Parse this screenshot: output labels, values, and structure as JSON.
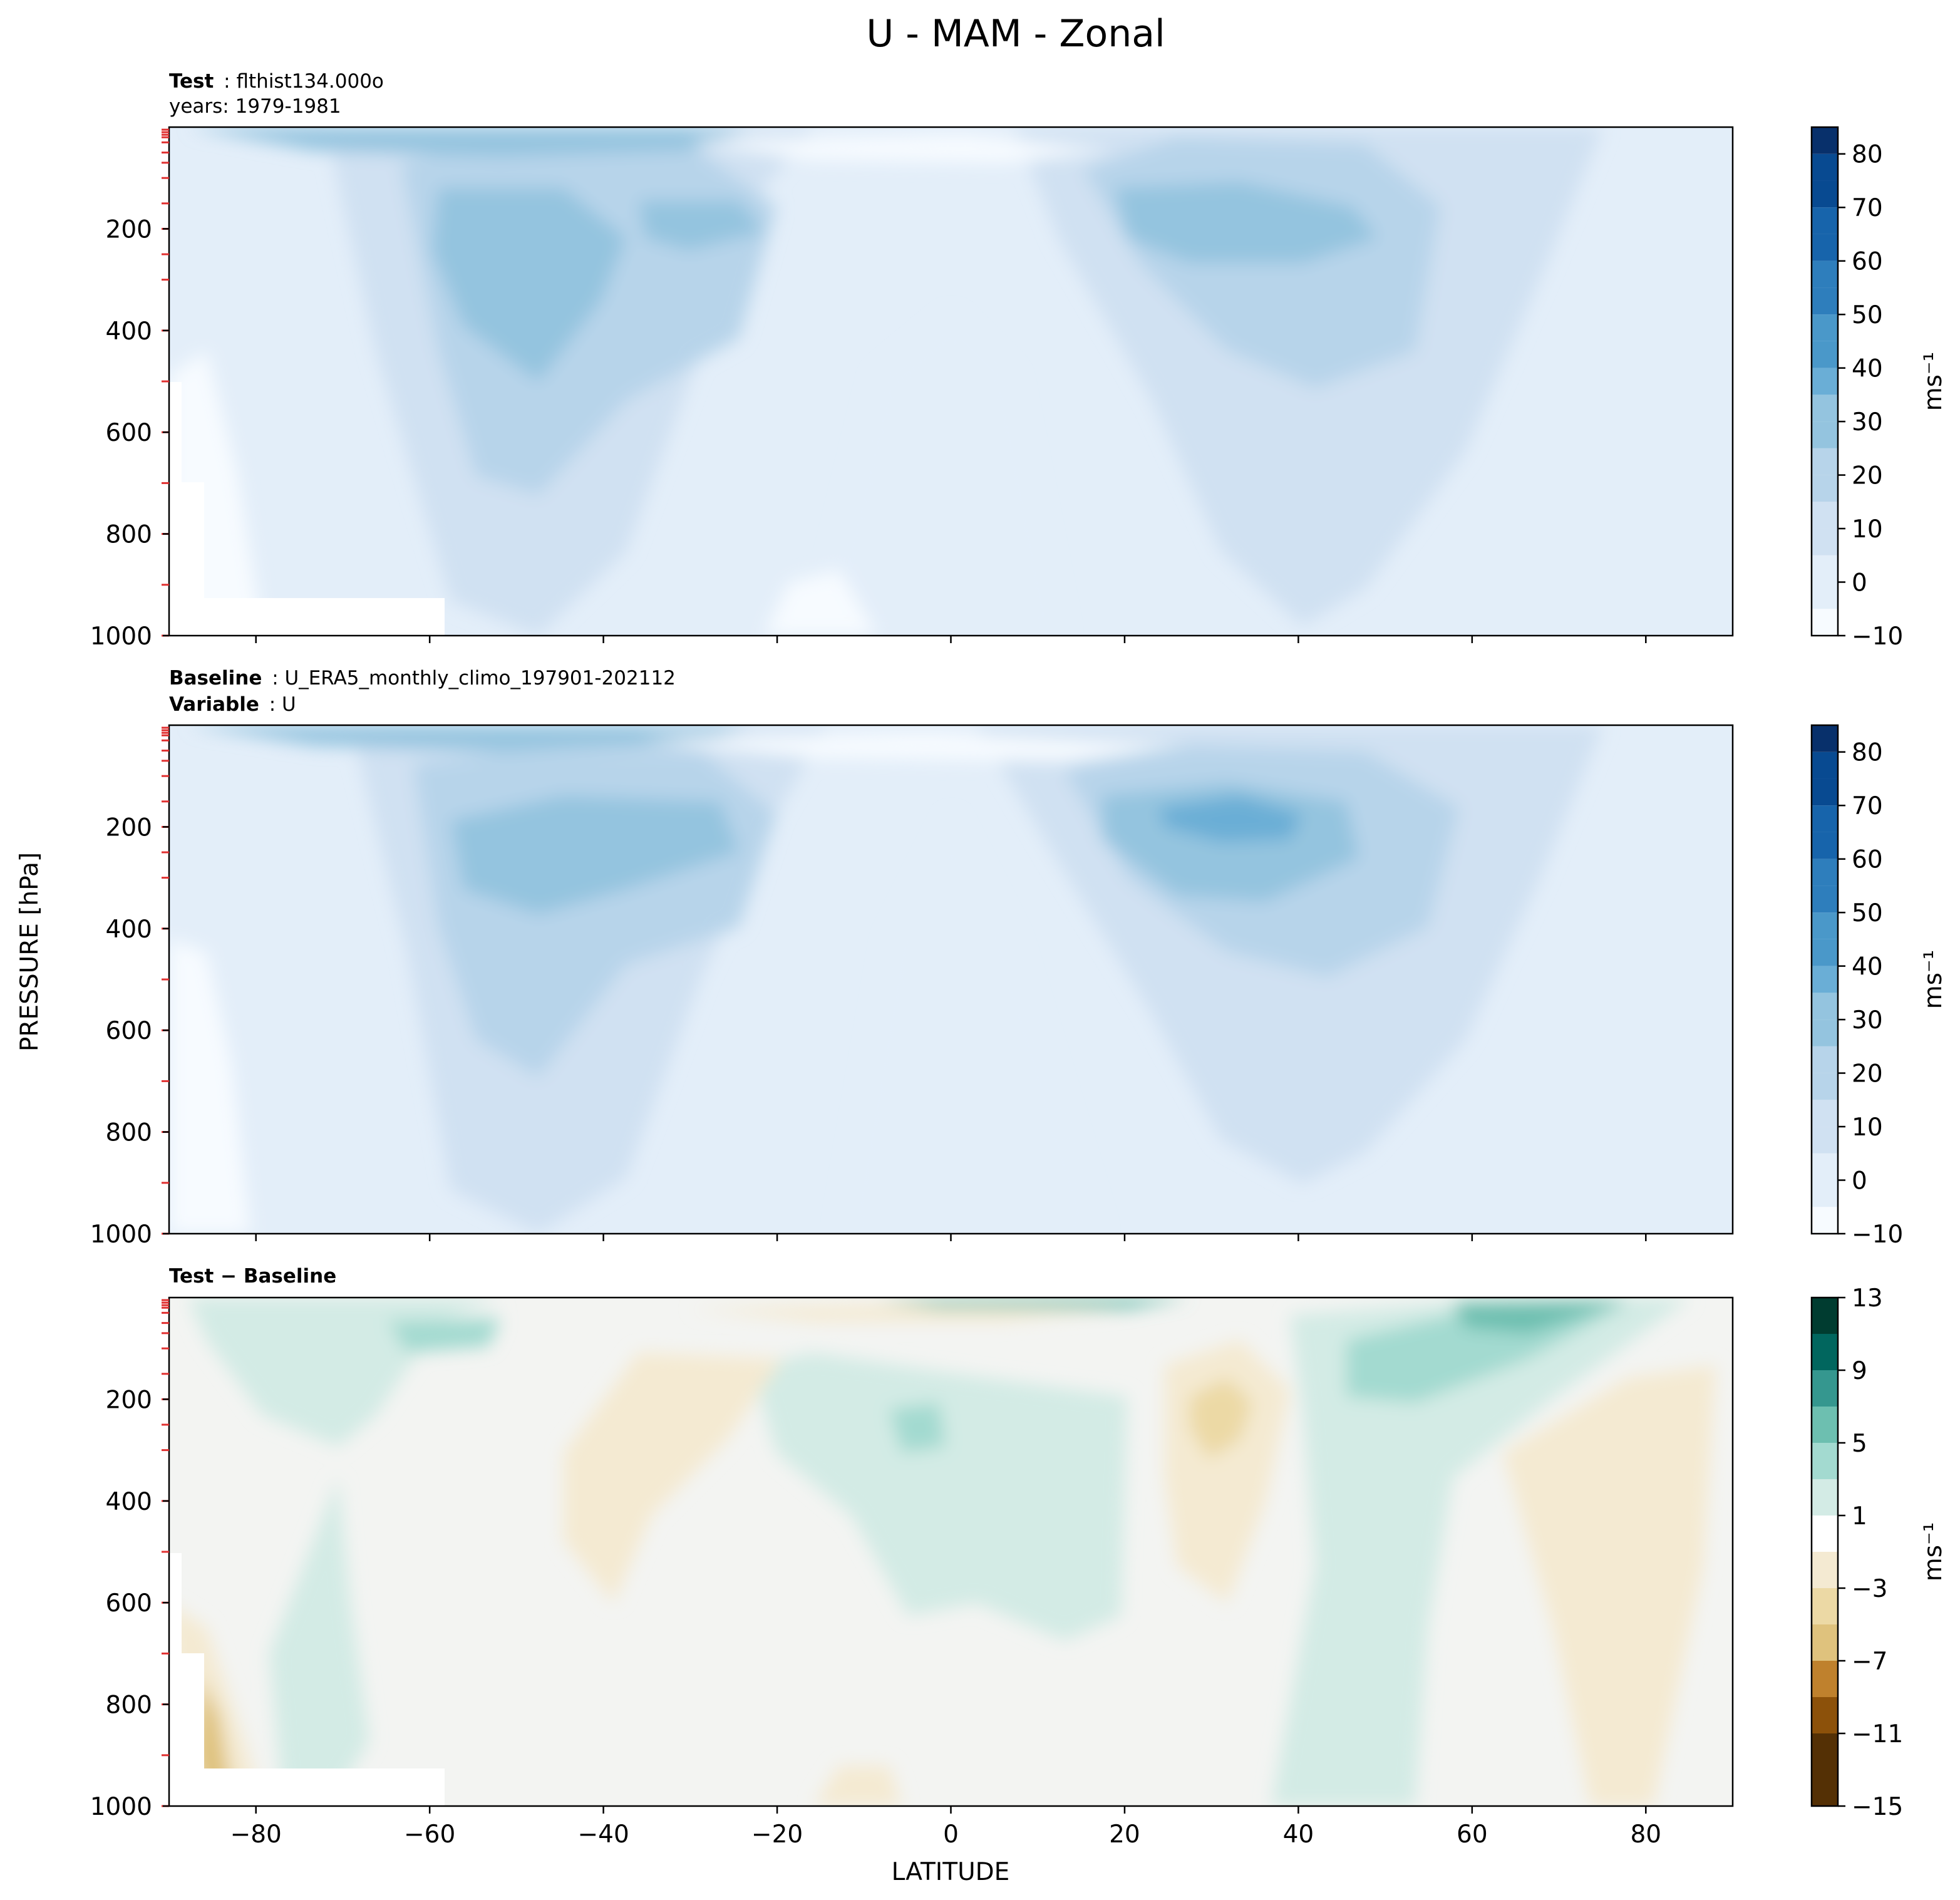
{
  "figure": {
    "title": "U - MAM - Zonal",
    "shared_ylabel": "PRESSURE [hPa]",
    "shared_xlabel": "LATITUDE",
    "x_ticks": [
      "−80",
      "−60",
      "−40",
      "−20",
      "0",
      "20",
      "40",
      "60",
      "80"
    ],
    "y_ticks": [
      "200",
      "400",
      "600",
      "800",
      "1000"
    ]
  },
  "panels": {
    "test": {
      "header_line1_key": "Test",
      "header_line1_value": "flthist134.000o",
      "header_line2": "years: 1979-1981",
      "colorbar_unit": "ms⁻¹",
      "colorbar_ticks": [
        "80",
        "70",
        "60",
        "50",
        "40",
        "30",
        "20",
        "10",
        "0",
        "−10"
      ]
    },
    "baseline": {
      "header_line1_key": "Baseline",
      "header_line1_value": "U_ERA5_monthly_climo_197901-202112",
      "header_line2_key": "Variable",
      "header_line2_value": "U",
      "colorbar_unit": "ms⁻¹",
      "colorbar_ticks": [
        "80",
        "70",
        "60",
        "50",
        "40",
        "30",
        "20",
        "10",
        "0",
        "−10"
      ]
    },
    "diff": {
      "header_text": "Test − Baseline",
      "colorbar_unit": "ms⁻¹",
      "colorbar_ticks": [
        "13",
        "9",
        "5",
        "1",
        "−3",
        "−7",
        "−11",
        "−15"
      ]
    }
  },
  "chart_data": [
    {
      "type": "heatmap",
      "panel": "test",
      "xlabel": "",
      "ylabel": "PRESSURE [hPa]",
      "xlim": [
        -90,
        90
      ],
      "ylim": [
        1000,
        0
      ],
      "color_range": [
        -10,
        85
      ],
      "colormap": "Blues",
      "jets_ms": [
        {
          "lat": -52,
          "pressure_hpa": 250,
          "approx_max": 35
        },
        {
          "lat": -30,
          "pressure_hpa": 200,
          "approx_max": 30
        },
        {
          "lat": 30,
          "pressure_hpa": 200,
          "approx_max": 35
        }
      ]
    },
    {
      "type": "heatmap",
      "panel": "baseline",
      "xlabel": "",
      "ylabel": "PRESSURE [hPa]",
      "xlim": [
        -90,
        90
      ],
      "ylim": [
        1000,
        0
      ],
      "color_range": [
        -10,
        85
      ],
      "colormap": "Blues",
      "jets_ms": [
        {
          "lat": -45,
          "pressure_hpa": 250,
          "approx_max": 35
        },
        {
          "lat": 30,
          "pressure_hpa": 200,
          "approx_max": 40
        }
      ]
    },
    {
      "type": "heatmap",
      "panel": "diff",
      "xlabel": "LATITUDE",
      "ylabel": "PRESSURE [hPa]",
      "xlim": [
        -90,
        90
      ],
      "ylim": [
        1000,
        0
      ],
      "color_range": [
        -15,
        13
      ],
      "colormap": "BrBG",
      "anomalies_ms": [
        {
          "lat": 65,
          "pressure_hpa": 30,
          "approx_value": 6
        },
        {
          "lat": 45,
          "pressure_hpa": 150,
          "approx_value": 3
        },
        {
          "lat": 30,
          "pressure_hpa": 200,
          "approx_value": -4
        },
        {
          "lat": -5,
          "pressure_hpa": 270,
          "approx_value": 3
        },
        {
          "lat": -45,
          "pressure_hpa": 400,
          "approx_value": -2
        },
        {
          "lat": 80,
          "pressure_hpa": 500,
          "approx_value": -2
        },
        {
          "lat": -85,
          "pressure_hpa": 850,
          "approx_value": -9
        }
      ]
    }
  ],
  "colors": {
    "diff_bg": "#f3f4f2",
    "blues": [
      "#f7fbff",
      "#e3eef9",
      "#d0e1f2",
      "#b7d4ea",
      "#94c4df",
      "#6aaed6",
      "#4a98c9",
      "#2e7ebc",
      "#1764ab",
      "#084a91",
      "#08306b"
    ],
    "brbg_pos": [
      "#d3ebe5",
      "#a3dad0",
      "#6dbfb0",
      "#35978f",
      "#01665e",
      "#003c30"
    ],
    "brbg_neg": [
      "#f4ead2",
      "#ecd9a5",
      "#dfc27d",
      "#bf812d",
      "#8c510a",
      "#543005"
    ]
  }
}
